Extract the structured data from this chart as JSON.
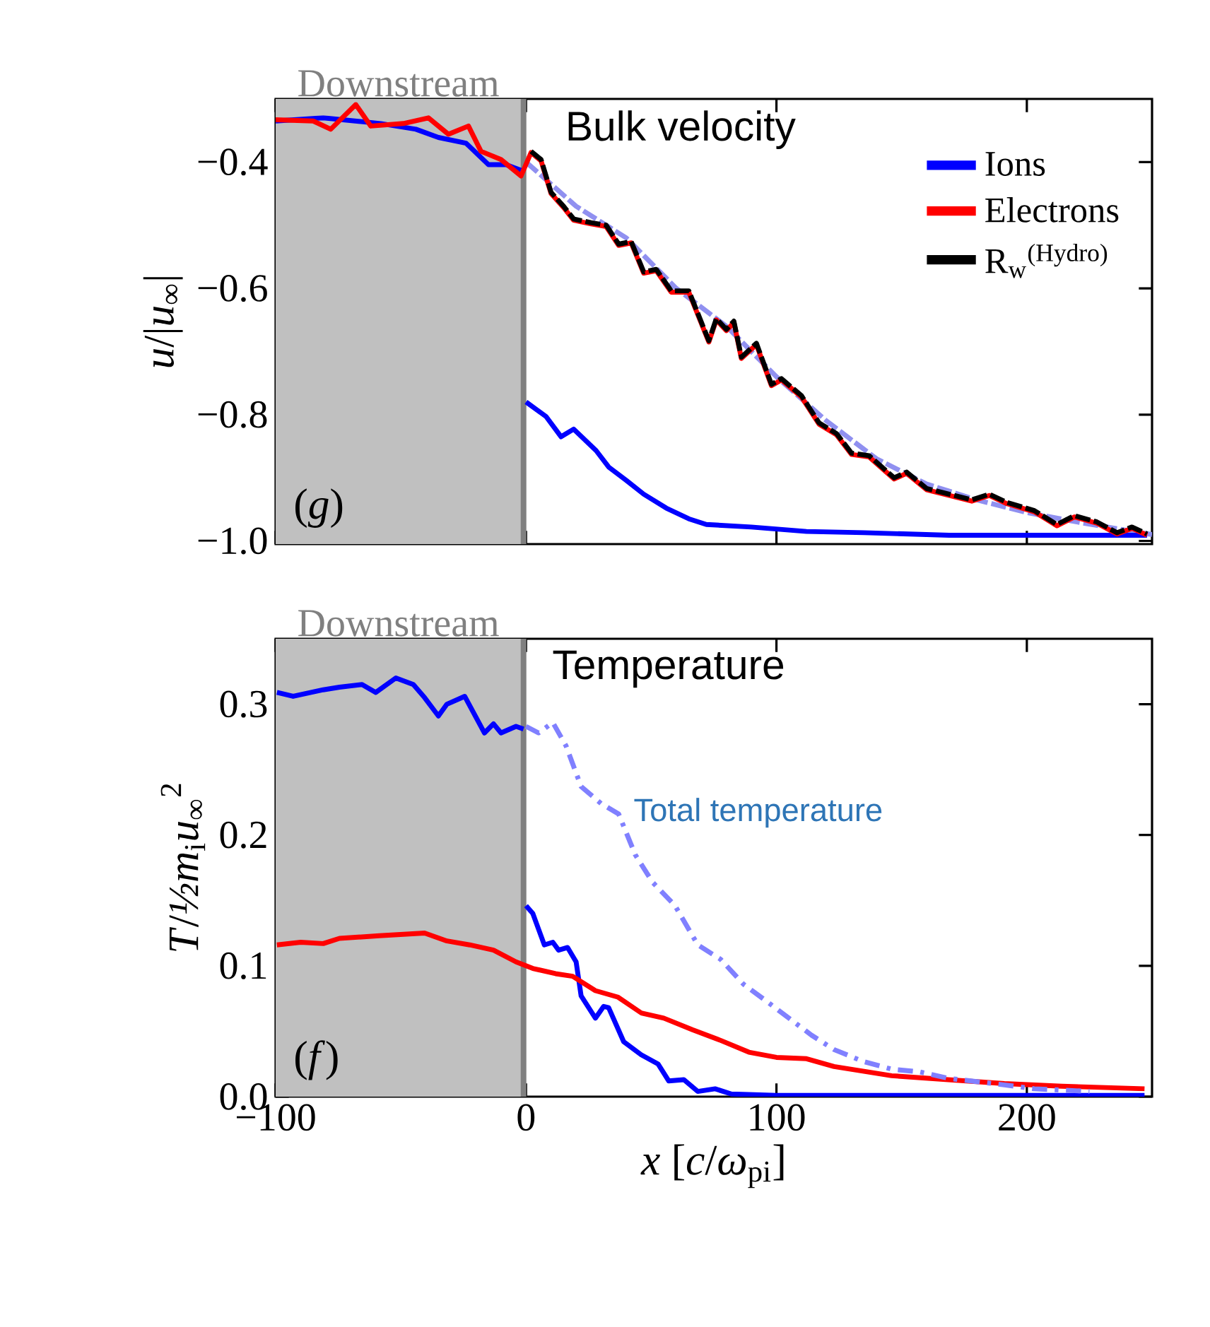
{
  "chart_data": [
    {
      "type": "line",
      "title": "Bulk velocity",
      "ylabel": "*u*/|*u*$_{∞}$|",
      "annotations": [
        "(*g*)"
      ],
      "xlim": [
        -100,
        250
      ],
      "xticks": [
        -100,
        0,
        100,
        200
      ],
      "tick_labels": "y",
      "ylim": [
        -1.005,
        -0.3
      ],
      "yticks": [
        {
          "value": -1.0,
          "label": "−1.0"
        },
        {
          "value": -0.8,
          "label": "−0.8"
        },
        {
          "value": -0.6,
          "label": "−0.6"
        },
        {
          "value": -0.4,
          "label": "−0.4"
        }
      ],
      "bands": [
        {
          "axis": "x",
          "from": -100,
          "to": -2,
          "label": "Downstream",
          "color": "#c0c0c0"
        }
      ],
      "ref_lines": [
        {
          "axis": "x",
          "value": -1,
          "color": "#808080"
        }
      ],
      "legend": "top right",
      "series": [
        {
          "color": "#9090f0",
          "line_style": "dashed",
          "x": [
            0,
            20,
            40,
            60,
            80,
            100,
            120,
            140,
            160,
            180,
            200,
            220,
            250
          ],
          "values": [
            -0.4,
            -0.47,
            -0.52,
            -0.6,
            -0.66,
            -0.74,
            -0.81,
            -0.87,
            -0.91,
            -0.935,
            -0.955,
            -0.97,
            -0.99
          ]
        },
        {
          "name": "Ions",
          "color": "#0000ff",
          "x": [
            -100,
            -81,
            -58,
            -44,
            -35,
            -24,
            -15,
            -8,
            -2,
            -1,
            0,
            8,
            14,
            19,
            28,
            33,
            40,
            47,
            56,
            65,
            72,
            90,
            112,
            135,
            169,
            215,
            248
          ],
          "values": [
            -0.335,
            -0.33,
            -0.339,
            -0.348,
            -0.361,
            -0.37,
            -0.404,
            -0.404,
            -0.413,
            null,
            -0.78,
            -0.803,
            -0.835,
            -0.823,
            -0.857,
            -0.883,
            -0.904,
            -0.926,
            -0.948,
            -0.965,
            -0.974,
            -0.978,
            -0.985,
            -0.987,
            -0.991,
            -0.991,
            -0.991
          ]
        },
        {
          "name": "Electrons",
          "color": "#ff0000",
          "x": [
            -100,
            -85,
            -78,
            -68,
            -62,
            -49,
            -39,
            -31,
            -23,
            -18,
            -10,
            -6,
            -2,
            2,
            6,
            10,
            15,
            19,
            26,
            32,
            37,
            42,
            47,
            52,
            58,
            65,
            73,
            76,
            80,
            83,
            86,
            92,
            98,
            102,
            110,
            117,
            124,
            130,
            137,
            147,
            152,
            160,
            169,
            178,
            185,
            192,
            203,
            212,
            219,
            228,
            236,
            242,
            248
          ],
          "values": [
            -0.333,
            -0.335,
            -0.348,
            -0.309,
            -0.343,
            -0.339,
            -0.33,
            -0.356,
            -0.343,
            -0.383,
            -0.396,
            -0.409,
            -0.422,
            -0.385,
            -0.398,
            -0.45,
            -0.472,
            -0.492,
            -0.498,
            -0.502,
            -0.532,
            -0.528,
            -0.576,
            -0.572,
            -0.606,
            -0.606,
            -0.685,
            -0.65,
            -0.667,
            -0.654,
            -0.711,
            -0.689,
            -0.754,
            -0.745,
            -0.772,
            -0.815,
            -0.832,
            -0.863,
            -0.867,
            -0.902,
            -0.893,
            -0.919,
            -0.928,
            -0.937,
            -0.928,
            -0.941,
            -0.954,
            -0.976,
            -0.962,
            -0.972,
            -0.989,
            -0.98,
            -0.991
          ]
        },
        {
          "name": "R$_{w}$$^{(Hydro)}$",
          "color": "#000000",
          "line_style": "dashed",
          "x": [
            2,
            6,
            10,
            15,
            19,
            26,
            32,
            37,
            42,
            47,
            52,
            58,
            65,
            73,
            76,
            80,
            83,
            86,
            92,
            98,
            102,
            110,
            117,
            124,
            130,
            137,
            147,
            152,
            160,
            169,
            178,
            185,
            192,
            203,
            212,
            219,
            228,
            236,
            242,
            248
          ],
          "values": [
            -0.383,
            -0.396,
            -0.448,
            -0.47,
            -0.49,
            -0.496,
            -0.5,
            -0.53,
            -0.526,
            -0.574,
            -0.57,
            -0.604,
            -0.604,
            -0.683,
            -0.648,
            -0.665,
            -0.652,
            -0.709,
            -0.687,
            -0.752,
            -0.743,
            -0.77,
            -0.813,
            -0.83,
            -0.861,
            -0.865,
            -0.9,
            -0.891,
            -0.917,
            -0.926,
            -0.935,
            -0.926,
            -0.939,
            -0.952,
            -0.974,
            -0.96,
            -0.97,
            -0.987,
            -0.978,
            -0.989
          ]
        }
      ]
    },
    {
      "type": "line",
      "title": "Temperature",
      "xlabel": "*x* [*c*/*ω*$_{pi}$]",
      "ylabel": "*T*/*½m*$_{i}$*u*$_{∞}$$^{2}$",
      "annotations": [
        "(*f*)"
      ],
      "xlim": [
        -100,
        250
      ],
      "xticks": [
        {
          "value": -100,
          "label": "−100"
        },
        0,
        100,
        200
      ],
      "ylim": [
        0,
        0.35
      ],
      "yticks": [
        {
          "value": 0,
          "label": "0.0"
        },
        {
          "value": 0.1,
          "label": "0.1"
        },
        {
          "value": 0.2,
          "label": "0.2"
        },
        {
          "value": 0.3,
          "label": "0.3"
        }
      ],
      "bands": [
        {
          "axis": "x",
          "from": -100,
          "to": -2,
          "label": "Downstream",
          "color": "#c0c0c0"
        }
      ],
      "ref_lines": [
        {
          "axis": "x",
          "value": -1,
          "color": "#808080"
        }
      ],
      "series": [
        {
          "color": "#0000ff",
          "x": [
            -99.5,
            -93,
            -81,
            -74.5,
            -65.5,
            -60,
            -52,
            -45,
            -40.5,
            -35,
            -31.6,
            -24.5,
            -16.6,
            -13,
            -10,
            -4,
            -1,
            -0.5,
            0,
            2.7,
            7.3,
            10.7,
            13,
            16.6,
            20,
            22,
            27.7,
            31,
            33,
            39,
            46,
            52.7,
            57,
            63,
            68.6,
            75.5,
            82,
            100,
            146,
            247
          ],
          "values": [
            0.309,
            0.306,
            0.311,
            0.313,
            0.315,
            0.309,
            0.32,
            0.315,
            0.305,
            0.291,
            0.3,
            0.306,
            0.278,
            0.285,
            0.278,
            0.283,
            0.281,
            null,
            0.146,
            0.14,
            0.116,
            0.118,
            0.112,
            0.114,
            0.103,
            0.077,
            0.06,
            0.069,
            0.068,
            0.042,
            0.032,
            0.025,
            0.012,
            0.013,
            0.004,
            0.006,
            0.002,
            0.001,
            0.001,
            0.001
          ]
        },
        {
          "color": "#ff0000",
          "x": [
            -99.5,
            -90,
            -81,
            -74.5,
            -58.6,
            -40.5,
            -31.6,
            -22.5,
            -13,
            -4,
            2.7,
            11.8,
            18.6,
            27.7,
            36.8,
            46,
            55,
            66.6,
            77.7,
            89,
            100,
            112,
            123,
            146,
            168.6,
            191,
            214,
            247
          ],
          "values": [
            0.116,
            0.118,
            0.117,
            0.121,
            0.123,
            0.125,
            0.119,
            0.116,
            0.112,
            0.103,
            0.098,
            0.094,
            0.092,
            0.081,
            0.076,
            0.064,
            0.06,
            0.051,
            0.043,
            0.034,
            0.03,
            0.029,
            0.023,
            0.016,
            0.013,
            0.01,
            0.008,
            0.006
          ]
        },
        {
          "name": "Total temperature",
          "color": "#8080ff",
          "line_style": "dashdot",
          "x": [
            0,
            5,
            10.7,
            16,
            22,
            30,
            37,
            43.6,
            50.5,
            59.5,
            68.6,
            77.7,
            86.8,
            96,
            105,
            114,
            123,
            134.5,
            146,
            157,
            168.6,
            191,
            203,
            225
          ],
          "values": [
            0.283,
            0.278,
            0.286,
            0.268,
            0.237,
            0.224,
            0.216,
            0.185,
            0.164,
            0.146,
            0.116,
            0.105,
            0.086,
            0.073,
            0.06,
            0.047,
            0.036,
            0.027,
            0.021,
            0.019,
            0.014,
            0.009,
            0.006,
            0.004
          ]
        }
      ]
    }
  ]
}
